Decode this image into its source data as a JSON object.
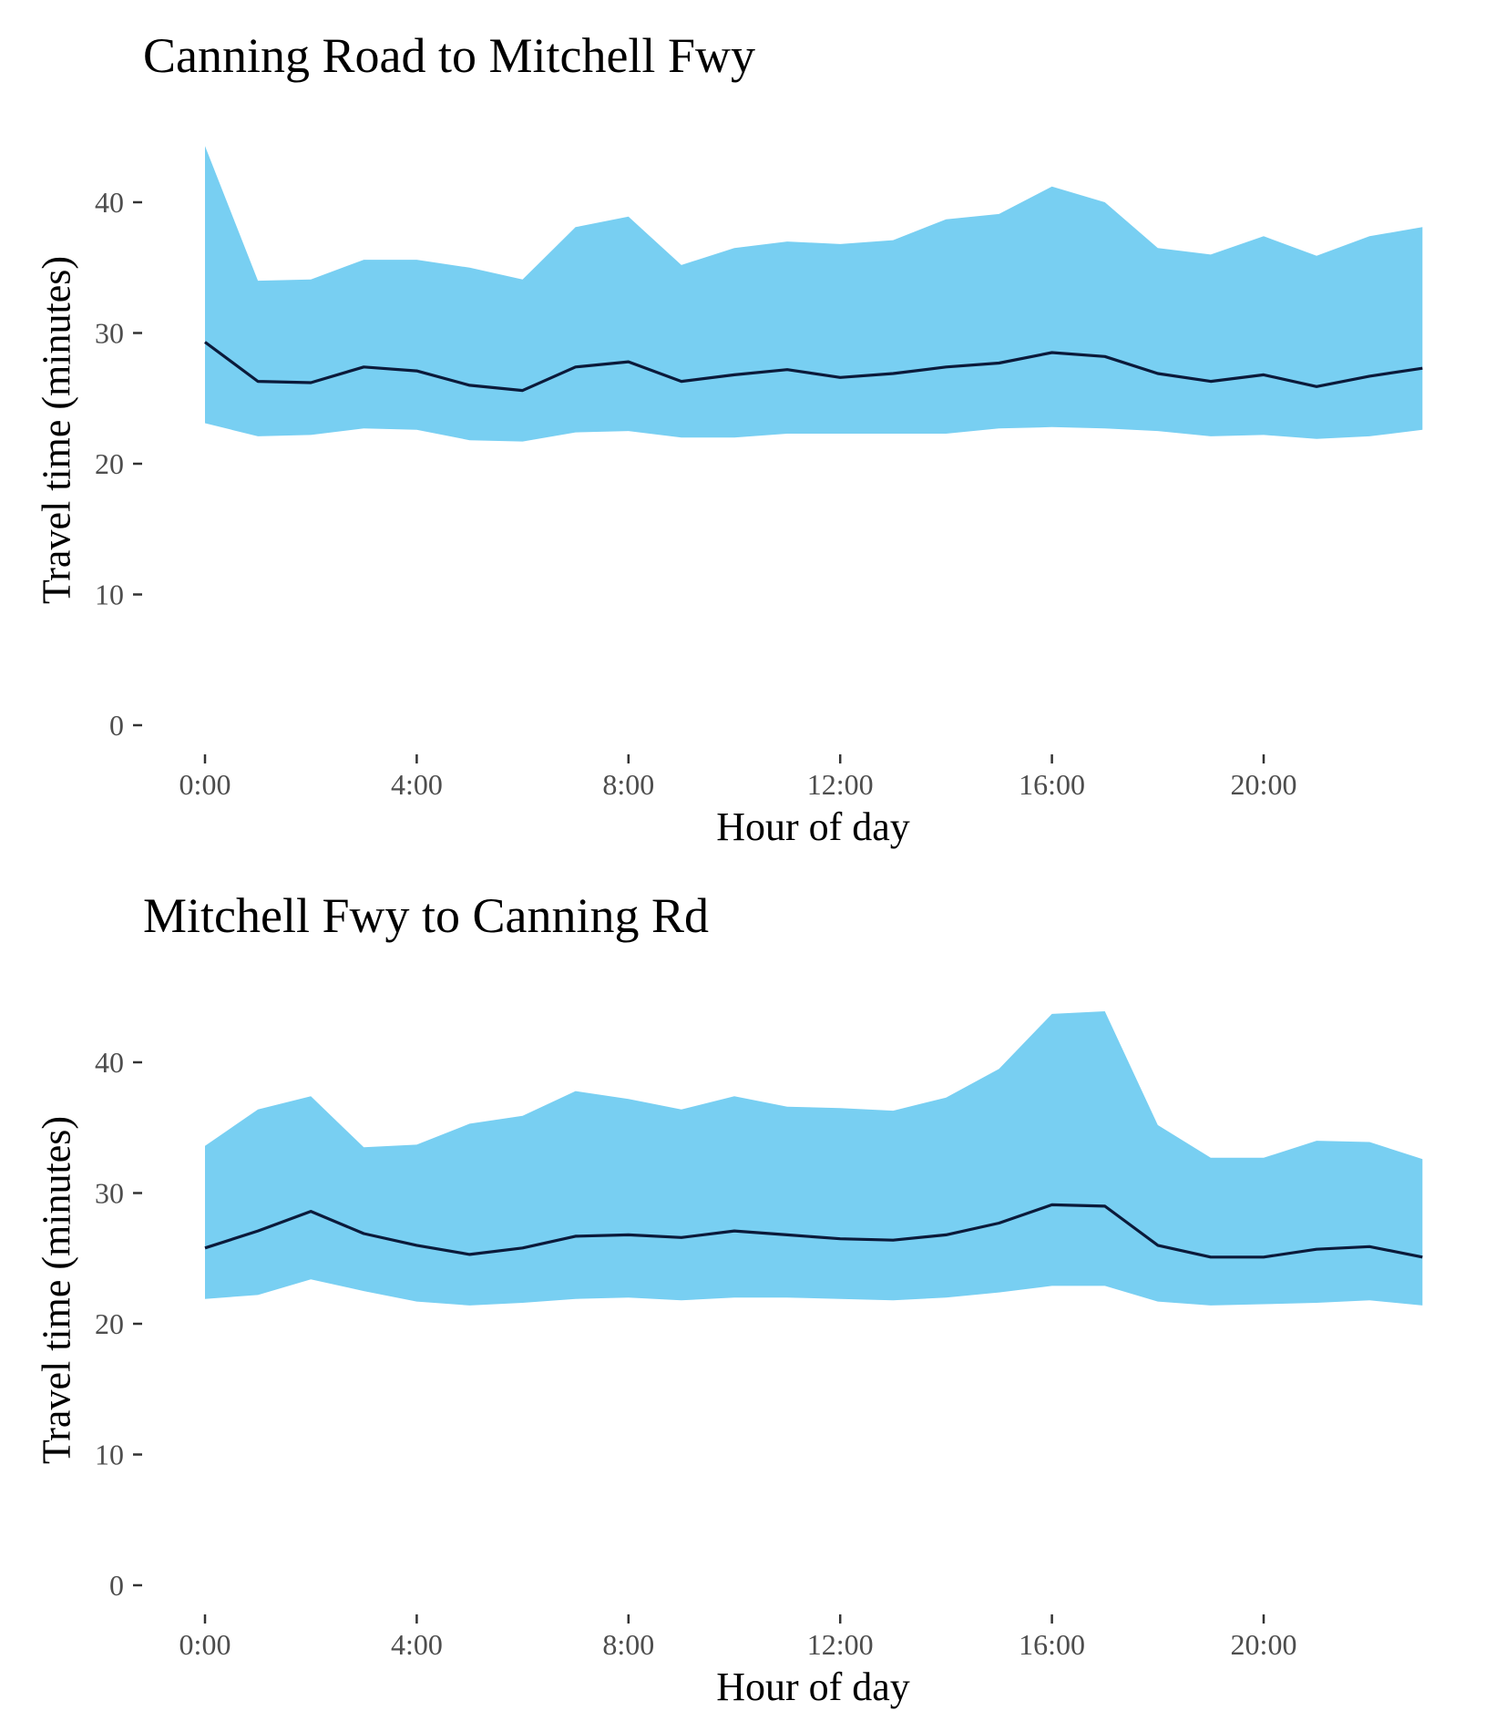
{
  "chart_data": [
    {
      "type": "area",
      "title": "Canning Road to Mitchell Fwy",
      "xlabel": "Hour of day",
      "ylabel": "Travel time (minutes)",
      "x": [
        0,
        1,
        2,
        3,
        4,
        5,
        6,
        7,
        8,
        9,
        10,
        11,
        12,
        13,
        14,
        15,
        16,
        17,
        18,
        19,
        20,
        21,
        22,
        23
      ],
      "x_ticks": [
        0,
        4,
        8,
        12,
        16,
        20
      ],
      "x_tick_labels": [
        "0:00",
        "4:00",
        "8:00",
        "12:00",
        "16:00",
        "20:00"
      ],
      "y_ticks": [
        0,
        10,
        20,
        30,
        40
      ],
      "y_tick_labels": [
        "0",
        "10",
        "20",
        "30",
        "40"
      ],
      "ylim": [
        0,
        45
      ],
      "xlim": [
        0,
        23
      ],
      "grid": false,
      "series": [
        {
          "kind": "line",
          "color": "#0b1a3a",
          "values": [
            29.3,
            26.3,
            26.2,
            27.4,
            27.1,
            26.0,
            25.6,
            27.4,
            27.8,
            26.3,
            26.8,
            27.2,
            26.6,
            26.9,
            27.4,
            27.7,
            28.5,
            28.2,
            26.9,
            26.3,
            26.8,
            25.9,
            26.7,
            27.3
          ]
        },
        {
          "kind": "band",
          "color": "#78cff2",
          "upper": [
            44.3,
            34.0,
            34.1,
            35.6,
            35.6,
            35.0,
            34.1,
            38.1,
            38.9,
            35.2,
            36.5,
            37.0,
            36.8,
            37.1,
            38.7,
            39.1,
            41.2,
            40.0,
            36.5,
            36.0,
            37.4,
            35.9,
            37.4,
            38.1
          ],
          "lower": [
            23.1,
            22.1,
            22.2,
            22.7,
            22.6,
            21.8,
            21.7,
            22.4,
            22.5,
            22.0,
            22.0,
            22.3,
            22.3,
            22.3,
            22.3,
            22.7,
            22.8,
            22.7,
            22.5,
            22.1,
            22.2,
            21.9,
            22.1,
            22.6
          ]
        }
      ]
    },
    {
      "type": "area",
      "title": "Mitchell Fwy to Canning Rd",
      "xlabel": "Hour of day",
      "ylabel": "Travel time (minutes)",
      "x": [
        0,
        1,
        2,
        3,
        4,
        5,
        6,
        7,
        8,
        9,
        10,
        11,
        12,
        13,
        14,
        15,
        16,
        17,
        18,
        19,
        20,
        21,
        22,
        23
      ],
      "x_ticks": [
        0,
        4,
        8,
        12,
        16,
        20
      ],
      "x_tick_labels": [
        "0:00",
        "4:00",
        "8:00",
        "12:00",
        "16:00",
        "20:00"
      ],
      "y_ticks": [
        0,
        10,
        20,
        30,
        40
      ],
      "y_tick_labels": [
        "0",
        "10",
        "20",
        "30",
        "40"
      ],
      "ylim": [
        0,
        45
      ],
      "xlim": [
        0,
        23
      ],
      "grid": false,
      "series": [
        {
          "kind": "line",
          "color": "#0b1a3a",
          "values": [
            25.8,
            27.1,
            28.6,
            26.9,
            26.0,
            25.3,
            25.8,
            26.7,
            26.8,
            26.6,
            27.1,
            26.8,
            26.5,
            26.4,
            26.8,
            27.7,
            29.1,
            29.0,
            26.0,
            25.1,
            25.1,
            25.7,
            25.9,
            25.1
          ]
        },
        {
          "kind": "band",
          "color": "#78cff2",
          "upper": [
            33.6,
            36.4,
            37.4,
            33.5,
            33.7,
            35.3,
            35.9,
            37.8,
            37.2,
            36.4,
            37.4,
            36.6,
            36.5,
            36.3,
            37.3,
            39.5,
            43.7,
            43.9,
            35.2,
            32.7,
            32.7,
            34.0,
            33.9,
            32.6
          ],
          "lower": [
            21.9,
            22.2,
            23.4,
            22.5,
            21.7,
            21.4,
            21.6,
            21.9,
            22.0,
            21.8,
            22.0,
            22.0,
            21.9,
            21.8,
            22.0,
            22.4,
            22.9,
            22.9,
            21.7,
            21.4,
            21.5,
            21.6,
            21.8,
            21.4
          ]
        }
      ]
    }
  ]
}
